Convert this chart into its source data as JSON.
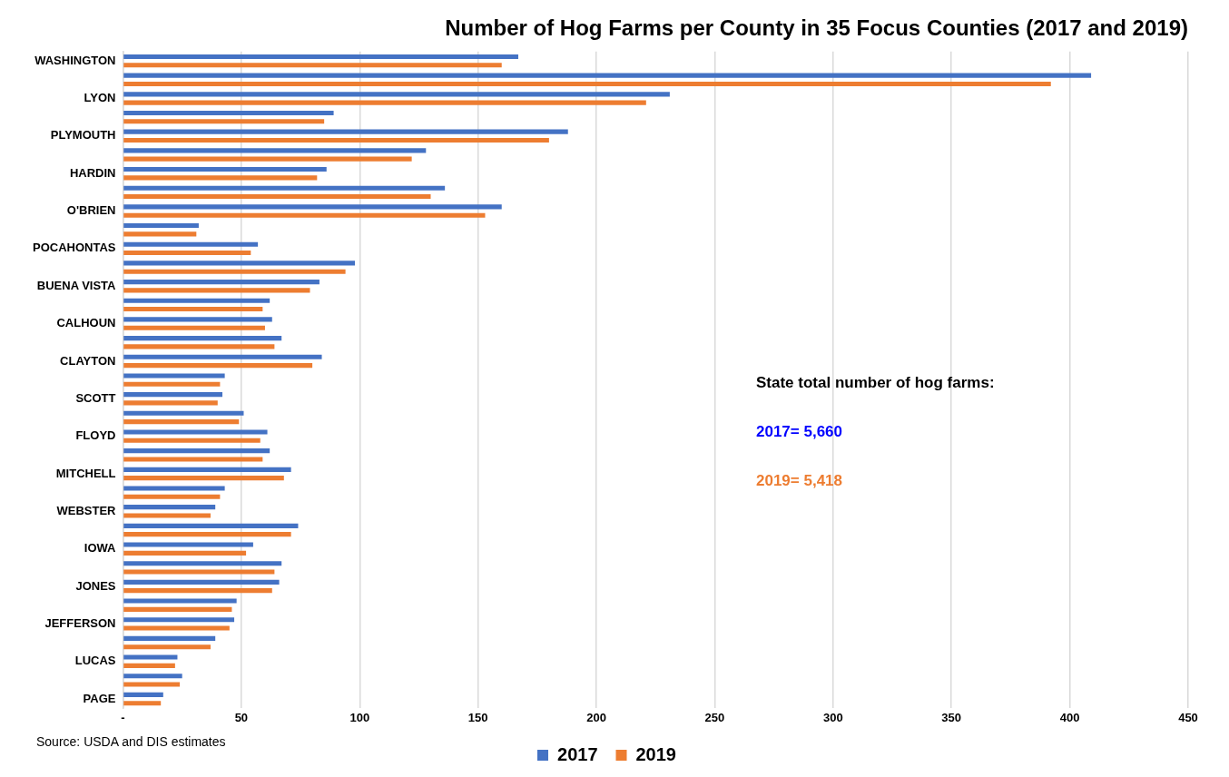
{
  "chart_data": {
    "type": "bar",
    "orientation": "horizontal",
    "title": "Number of Hog Farms per County in 35 Focus Counties (2017 and 2019)",
    "categories": [
      "WASHINGTON",
      null,
      "LYON",
      null,
      "PLYMOUTH",
      null,
      "HARDIN",
      null,
      "O'BRIEN",
      null,
      "POCAHONTAS",
      null,
      "BUENA VISTA",
      null,
      "CALHOUN",
      null,
      "CLAYTON",
      null,
      "SCOTT",
      null,
      "FLOYD",
      null,
      "MITCHELL",
      null,
      "WEBSTER",
      null,
      "IOWA",
      null,
      "JONES",
      null,
      "JEFFERSON",
      null,
      "LUCAS",
      null,
      "PAGE"
    ],
    "series": [
      {
        "name": "2017",
        "color": "#4472c4",
        "values": [
          167,
          409,
          231,
          89,
          188,
          128,
          86,
          136,
          160,
          32,
          57,
          98,
          83,
          62,
          63,
          67,
          84,
          43,
          42,
          51,
          61,
          62,
          71,
          43,
          39,
          74,
          55,
          67,
          66,
          48,
          47,
          39,
          23,
          25,
          17
        ]
      },
      {
        "name": "2019",
        "color": "#ed7d31",
        "values": [
          160,
          392,
          221,
          85,
          180,
          122,
          82,
          130,
          153,
          31,
          54,
          94,
          79,
          59,
          60,
          64,
          80,
          41,
          40,
          49,
          58,
          59,
          68,
          41,
          37,
          71,
          52,
          64,
          63,
          46,
          45,
          37,
          22,
          24,
          16
        ]
      }
    ],
    "xlim": [
      0,
      450
    ],
    "xticks": [
      {
        "value": 0,
        "label": "-"
      },
      50,
      100,
      150,
      200,
      250,
      300,
      350,
      400,
      450
    ],
    "grid": "x",
    "legend": "bottom",
    "annotations": [
      "State total number of hog farms:",
      "2017= 5,660",
      "2019= 5,418",
      "Source: USDA and DIS estimates"
    ]
  }
}
